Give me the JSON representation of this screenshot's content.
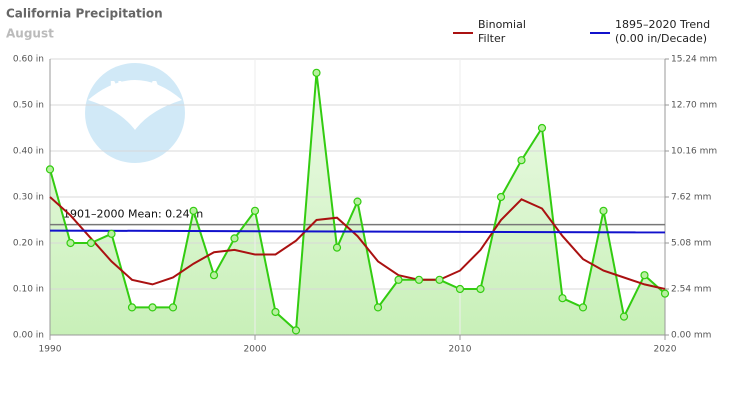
{
  "chart_data": {
    "type": "line",
    "title": "California Precipitation",
    "subtitle": "August",
    "logo_text": "NOAA",
    "x": [
      1990,
      1991,
      1992,
      1993,
      1994,
      1995,
      1996,
      1997,
      1998,
      1999,
      2000,
      2001,
      2002,
      2003,
      2004,
      2005,
      2006,
      2007,
      2008,
      2009,
      2010,
      2011,
      2012,
      2013,
      2014,
      2015,
      2016,
      2017,
      2018,
      2019,
      2020
    ],
    "values": [
      0.36,
      0.2,
      0.2,
      0.22,
      0.06,
      0.06,
      0.06,
      0.27,
      0.13,
      0.21,
      0.27,
      0.05,
      0.01,
      0.57,
      0.19,
      0.29,
      0.06,
      0.12,
      0.12,
      0.12,
      0.1,
      0.1,
      0.3,
      0.38,
      0.45,
      0.08,
      0.06,
      0.27,
      0.04,
      0.13,
      0.09
    ],
    "color": "#33cc11",
    "series": [
      {
        "name": "Binomial Filter",
        "color": "#aa1111",
        "values": [
          0.3,
          0.26,
          0.21,
          0.16,
          0.12,
          0.11,
          0.125,
          0.155,
          0.18,
          0.185,
          0.175,
          0.175,
          0.205,
          0.25,
          0.255,
          0.215,
          0.16,
          0.13,
          0.12,
          0.12,
          0.14,
          0.185,
          0.25,
          0.295,
          0.275,
          0.215,
          0.165,
          0.14,
          0.125,
          0.11,
          0.1
        ]
      },
      {
        "name": "1895–2020 Trend (0.00 in/Decade)",
        "color": "#1111cc",
        "x": [
          1990,
          2020
        ],
        "values": [
          0.227,
          0.223
        ]
      }
    ],
    "mean": {
      "value": 0.24,
      "label": "1901–2000 Mean: 0.24 in"
    },
    "xlim": [
      1990,
      2020
    ],
    "xticks": [
      1990,
      2000,
      2010,
      2020
    ],
    "ylim": [
      0,
      0.6
    ],
    "yticks": [
      {
        "value": 0,
        "label": "0.00 in"
      },
      {
        "value": 0.1,
        "label": "0.10 in"
      },
      {
        "value": 0.2,
        "label": "0.20 in"
      },
      {
        "value": 0.3,
        "label": "0.30 in"
      },
      {
        "value": 0.4,
        "label": "0.40 in"
      },
      {
        "value": 0.5,
        "label": "0.50 in"
      },
      {
        "value": 0.6,
        "label": "0.60 in"
      }
    ],
    "y2lim": [
      0,
      15.24
    ],
    "y2ticks": [
      {
        "value": 0,
        "label": "0.00 mm"
      },
      {
        "value": 2.54,
        "label": "2.54 mm"
      },
      {
        "value": 5.08,
        "label": "5.08 mm"
      },
      {
        "value": 7.62,
        "label": "7.62 mm"
      },
      {
        "value": 10.16,
        "label": "10.16 mm"
      },
      {
        "value": 12.7,
        "label": "12.70 mm"
      },
      {
        "value": 15.24,
        "label": "15.24 mm"
      }
    ],
    "grid": true
  }
}
